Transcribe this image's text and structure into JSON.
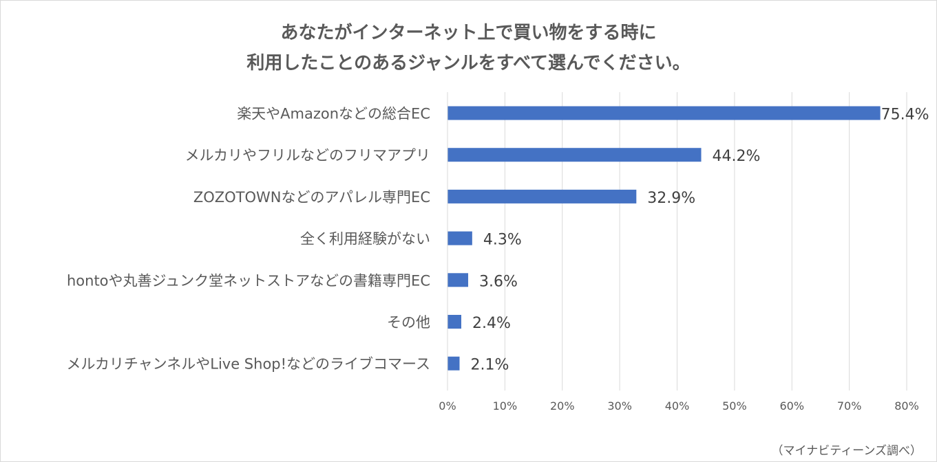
{
  "chart_data": {
    "type": "bar",
    "orientation": "horizontal",
    "title": [
      "あなたがインターネット上で買い物をする時に",
      "利用したことのあるジャンルをすべて選んでください。"
    ],
    "categories": [
      "楽天やAmazonなどの総合EC",
      "メルカリやフリルなどのフリマアプリ",
      "ZOZOTOWNなどのアパレル専門EC",
      "全く利用経験がない",
      "hontoや丸善ジュンク堂ネットストアなどの書籍専門EC",
      "その他",
      "メルカリチャンネルやLive Shop!などのライブコマース"
    ],
    "values": [
      75.4,
      44.2,
      32.9,
      4.3,
      3.6,
      2.4,
      2.1
    ],
    "data_labels": [
      "75.4%",
      "44.2%",
      "32.9%",
      "4.3%",
      "3.6%",
      "2.4%",
      "2.1%"
    ],
    "xlim": [
      0,
      80
    ],
    "xticks": [
      0,
      10,
      20,
      30,
      40,
      50,
      60,
      70,
      80
    ],
    "xtick_labels": [
      "0%",
      "10%",
      "20%",
      "30%",
      "40%",
      "50%",
      "60%",
      "70%",
      "80%"
    ],
    "grid": true,
    "bar_color": "#4472C4",
    "grid_color": "#d9d9d9",
    "text_color": "#595959"
  },
  "source_note": "（マイナビティーンズ調べ）"
}
